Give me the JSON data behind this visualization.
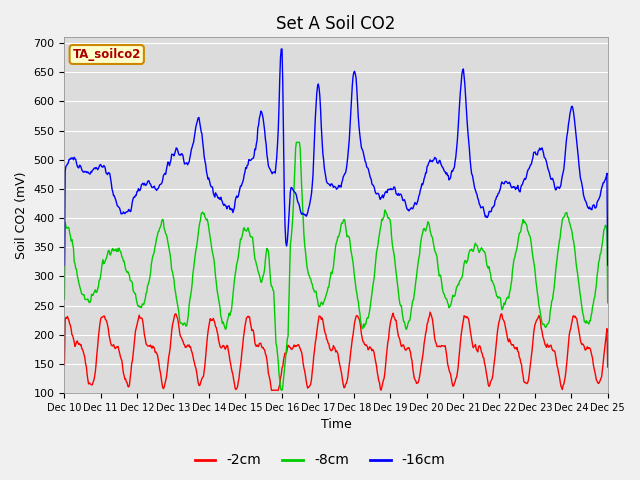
{
  "title": "Set A Soil CO2",
  "xlabel": "Time",
  "ylabel": "Soil CO2 (mV)",
  "ylim": [
    100,
    710
  ],
  "yticks": [
    100,
    150,
    200,
    250,
    300,
    350,
    400,
    450,
    500,
    550,
    600,
    650,
    700
  ],
  "x_labels": [
    "Dec 10",
    "Dec 11",
    "Dec 12",
    "Dec 13",
    "Dec 14",
    "Dec 15",
    "Dec 16",
    "Dec 17",
    "Dec 18",
    "Dec 19",
    "Dec 20",
    "Dec 21",
    "Dec 22",
    "Dec 23",
    "Dec 24",
    "Dec 25"
  ],
  "legend_label": "TA_soilco2",
  "series_labels": [
    "-2cm",
    "-8cm",
    "-16cm"
  ],
  "series_colors": [
    "#ff0000",
    "#00cc00",
    "#0000ff"
  ],
  "fig_bg_color": "#f0f0f0",
  "plot_bg_color": "#dcdcdc",
  "grid_color": "#ffffff",
  "title_fontsize": 12,
  "axis_fontsize": 9,
  "tick_fontsize": 8,
  "legend_fontsize": 10
}
